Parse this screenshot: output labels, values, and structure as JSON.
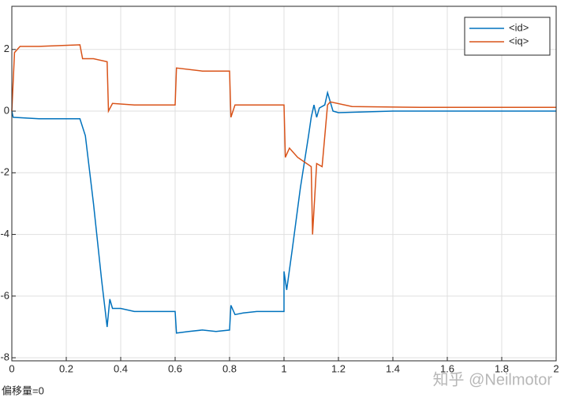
{
  "chart_data": {
    "type": "line",
    "footer": "偏移量=0",
    "watermark": "知乎 @Neilmotor",
    "xlim": [
      0,
      2
    ],
    "xticks": [
      0,
      0.2,
      0.4,
      0.6,
      0.8,
      1,
      1.2,
      1.4,
      1.6,
      1.8,
      2
    ],
    "ylim": [
      -8.1,
      3.4
    ],
    "yticks": [
      -8,
      -6,
      -4,
      -2,
      0,
      2
    ],
    "grid": true,
    "legend": "top-right",
    "series": [
      {
        "name": "<id>",
        "color": "#0072bd",
        "x": [
          0,
          0.005,
          0.1,
          0.2,
          0.25,
          0.27,
          0.3,
          0.33,
          0.35,
          0.36,
          0.37,
          0.4,
          0.45,
          0.5,
          0.55,
          0.6,
          0.605,
          0.65,
          0.7,
          0.75,
          0.8,
          0.805,
          0.82,
          0.85,
          0.9,
          0.95,
          1.0,
          1.0,
          1.01,
          1.03,
          1.06,
          1.09,
          1.1,
          1.11,
          1.12,
          1.13,
          1.15,
          1.16,
          1.18,
          1.2,
          1.4,
          1.6,
          1.8,
          2
        ],
        "values": [
          0,
          -0.2,
          -0.25,
          -0.25,
          -0.25,
          -0.8,
          -3,
          -5.5,
          -7,
          -6.1,
          -6.4,
          -6.4,
          -6.5,
          -6.5,
          -6.5,
          -6.5,
          -7.2,
          -7.15,
          -7.1,
          -7.15,
          -7.1,
          -6.3,
          -6.6,
          -6.55,
          -6.5,
          -6.5,
          -6.5,
          -5.2,
          -5.8,
          -4.5,
          -2.5,
          -0.8,
          -0.2,
          0.2,
          -0.2,
          0.1,
          0.2,
          0.6,
          0,
          -0.05,
          0,
          0,
          0,
          0
        ]
      },
      {
        "name": "<iq>",
        "color": "#d95319",
        "x": [
          0,
          0.01,
          0.03,
          0.1,
          0.25,
          0.26,
          0.3,
          0.35,
          0.355,
          0.37,
          0.45,
          0.6,
          0.605,
          0.7,
          0.8,
          0.805,
          0.82,
          0.9,
          1.0,
          1.005,
          1.02,
          1.05,
          1.1,
          1.105,
          1.12,
          1.14,
          1.16,
          1.17,
          1.25,
          1.5,
          2
        ],
        "values": [
          0,
          1.9,
          2.1,
          2.1,
          2.15,
          1.7,
          1.7,
          1.6,
          0,
          0.25,
          0.2,
          0.2,
          1.4,
          1.3,
          1.3,
          -0.2,
          0.2,
          0.2,
          0.2,
          -1.5,
          -1.2,
          -1.5,
          -1.8,
          -4,
          -1.7,
          -1.8,
          0.2,
          0.3,
          0.15,
          0.12,
          0.12
        ]
      }
    ]
  }
}
